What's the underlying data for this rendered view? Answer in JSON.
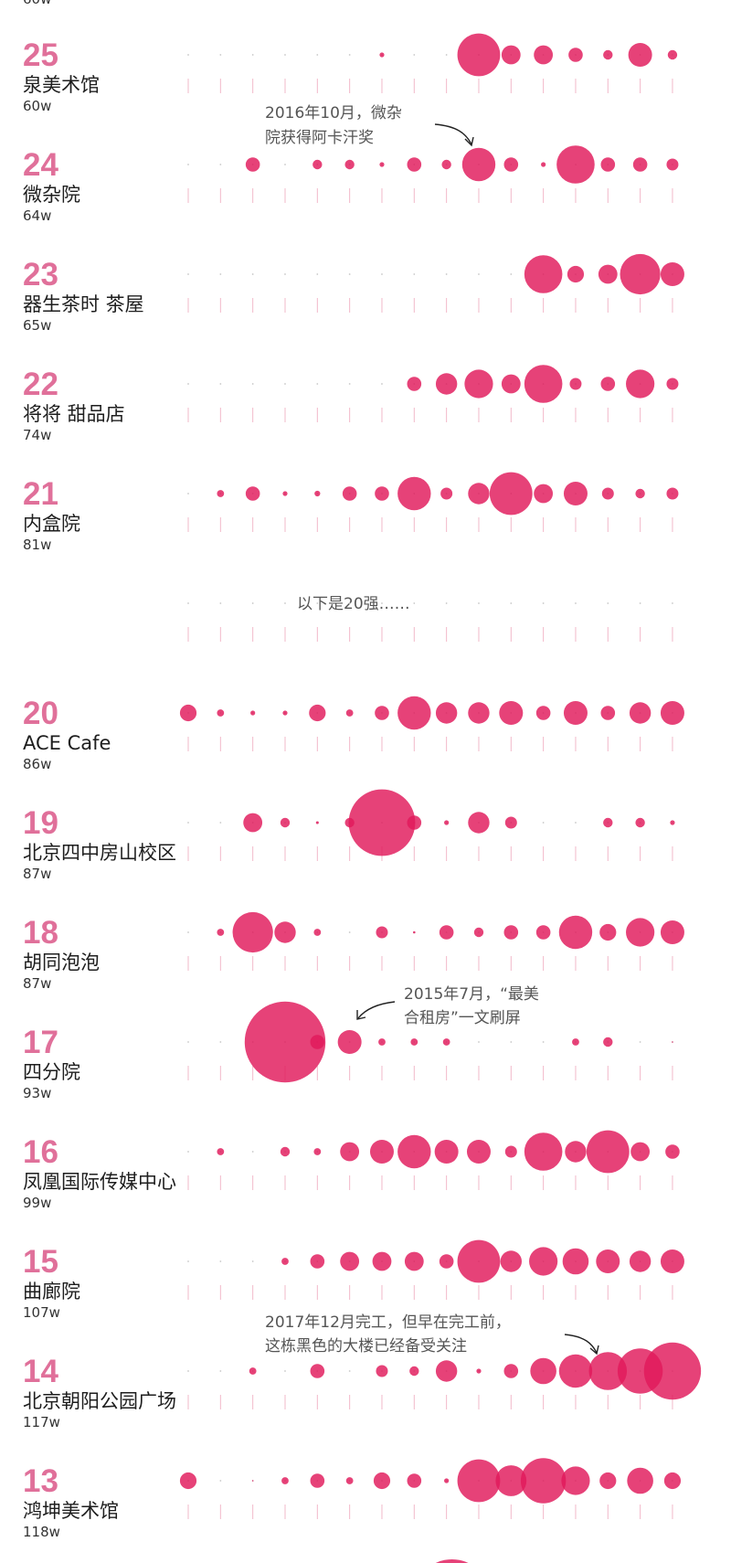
{
  "chart_data": {
    "type": "scatter",
    "columns": 16,
    "colors": {
      "bubble": "#e1195a",
      "rank": "#e0709a",
      "tick_line": "#f2b8c9"
    },
    "partial_top_text": "60w",
    "partial_bottom_row_visible": true,
    "rows": [
      {
        "rank": "25",
        "name": "泉美术馆",
        "value": "60w",
        "sizes": [
          0,
          0,
          0,
          0,
          0,
          0,
          1,
          0,
          0,
          9,
          4,
          4,
          3,
          2,
          5,
          2
        ]
      },
      {
        "rank": "24",
        "name": "微杂院",
        "value": "64w",
        "sizes": [
          0,
          0,
          3,
          0,
          2,
          2,
          1,
          3,
          2,
          7,
          3,
          1,
          8,
          3,
          3,
          2.5
        ]
      },
      {
        "rank": "23",
        "name": "器生茶时 茶屋",
        "value": "65w",
        "sizes": [
          0,
          0,
          0,
          0,
          0,
          0,
          0,
          0,
          0,
          0,
          0,
          8,
          3.5,
          4,
          8.5,
          5
        ]
      },
      {
        "rank": "22",
        "name": "将将 甜品店",
        "value": "74w",
        "sizes": [
          0,
          0,
          0,
          0,
          0,
          0,
          0,
          3,
          4.5,
          6,
          4,
          8,
          2.5,
          3,
          6,
          2.5
        ]
      },
      {
        "rank": "21",
        "name": "内盒院",
        "value": "81w",
        "sizes": [
          0,
          1.5,
          3,
          1,
          1.2,
          3,
          3,
          7,
          2.5,
          4.5,
          9,
          4,
          5,
          2.5,
          2,
          2.5
        ]
      },
      {
        "rank": "",
        "name": "",
        "value": "",
        "note": "以下是20强……",
        "sizes": [
          0,
          0,
          0,
          0,
          0,
          0,
          0,
          0,
          0,
          0,
          0,
          0,
          0,
          0,
          0,
          0
        ]
      },
      {
        "rank": "20",
        "name": "ACE Cafe",
        "value": "86w",
        "sizes": [
          3.5,
          1.5,
          1,
          1,
          3.5,
          1.5,
          3,
          7,
          4.5,
          4.5,
          5,
          3,
          5,
          3,
          4.5,
          5
        ]
      },
      {
        "rank": "19",
        "name": "北京四中房山校区",
        "value": "87w",
        "sizes": [
          0,
          0,
          4,
          2,
          0.6,
          2,
          14,
          3,
          1,
          4.5,
          2.5,
          0,
          0,
          2,
          2,
          1
        ]
      },
      {
        "rank": "18",
        "name": "胡同泡泡",
        "value": "87w",
        "sizes": [
          0,
          1.5,
          8.5,
          4.5,
          1.5,
          0,
          2.5,
          0.5,
          3,
          2,
          3,
          3,
          7,
          3.5,
          6,
          5
        ]
      },
      {
        "rank": "17",
        "name": "四分院",
        "value": "93w",
        "sizes": [
          0,
          0,
          0,
          17,
          3,
          5,
          1.5,
          1.5,
          1.5,
          0,
          0,
          0,
          1.5,
          2,
          0,
          0.3
        ]
      },
      {
        "rank": "16",
        "name": "凤凰国际传媒中心",
        "value": "99w",
        "sizes": [
          0,
          1.5,
          0,
          2,
          1.5,
          4,
          5,
          7,
          5,
          5,
          2.5,
          8,
          4.5,
          9,
          4,
          3
        ]
      },
      {
        "rank": "15",
        "name": "曲廊院",
        "value": "107w",
        "sizes": [
          0,
          0,
          0,
          1.5,
          3,
          4,
          4,
          4,
          3,
          9,
          4.5,
          6,
          5.5,
          5,
          4.5,
          5
        ]
      },
      {
        "rank": "14",
        "name": "北京朝阳公园广场",
        "value": "117w",
        "sizes": [
          0,
          0,
          1.5,
          0,
          3,
          0,
          2.5,
          2,
          4.5,
          1,
          3,
          5.5,
          7,
          8,
          9.5,
          12
        ]
      },
      {
        "rank": "13",
        "name": "鸿坤美术馆",
        "value": "118w",
        "sizes": [
          3.5,
          0,
          0.3,
          1.5,
          3,
          1.5,
          3.5,
          3,
          1,
          9,
          6.5,
          9.5,
          6,
          3.5,
          5.5,
          3.5
        ]
      }
    ],
    "annotations": [
      {
        "text_line1": "2016年10月，微杂",
        "text_line2": "院获得阿卡汗奖"
      },
      {
        "text_line1": "2015年7月，“最美",
        "text_line2": "合租房”一文刷屏"
      },
      {
        "text_line1": "2017年12月完工，但早在完工前，",
        "text_line2": "这栋黑色的大楼已经备受关注"
      }
    ]
  }
}
